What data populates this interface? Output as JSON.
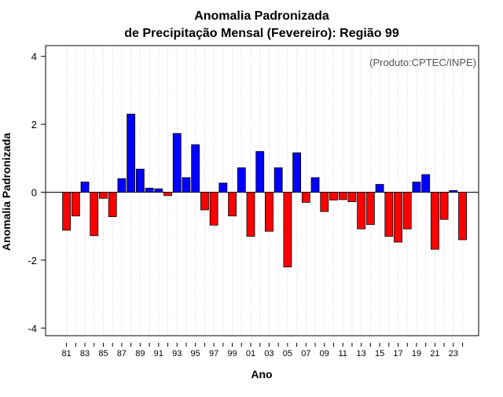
{
  "chart_data": {
    "type": "bar",
    "title": "Anomalia Padronizada",
    "subtitle": "de Precipitação Mensal (Fevereiro): Região 99",
    "annotation": "(Produto:CPTEC/INPE)",
    "xlabel": "Ano",
    "ylabel": "Anomalia Padronizada",
    "ylim": [
      -4.2,
      4.3
    ],
    "yticks": [
      -4,
      -2,
      0,
      2,
      4
    ],
    "grid": "vertical dotted",
    "positive_color": "#0000ff",
    "negative_color": "#ff0000",
    "categories": [
      "81",
      "82",
      "83",
      "84",
      "85",
      "86",
      "87",
      "88",
      "89",
      "90",
      "91",
      "92",
      "93",
      "94",
      "95",
      "96",
      "97",
      "98",
      "99",
      "00",
      "01",
      "02",
      "03",
      "04",
      "05",
      "06",
      "07",
      "08",
      "09",
      "10",
      "11",
      "12",
      "13",
      "14",
      "15",
      "16",
      "17",
      "18",
      "19",
      "20",
      "21",
      "22",
      "23",
      "24"
    ],
    "tick_labels": [
      "81",
      "83",
      "85",
      "87",
      "89",
      "91",
      "93",
      "95",
      "97",
      "99",
      "01",
      "03",
      "05",
      "07",
      "09",
      "11",
      "13",
      "15",
      "17",
      "19",
      "21",
      "23"
    ],
    "values": [
      -1.12,
      -0.7,
      0.3,
      -1.28,
      -0.18,
      -0.72,
      0.4,
      2.3,
      0.68,
      0.12,
      0.1,
      -0.1,
      1.73,
      0.43,
      1.4,
      -0.52,
      -0.97,
      0.27,
      -0.7,
      0.72,
      -1.3,
      1.2,
      -1.15,
      0.72,
      -2.2,
      1.16,
      -0.3,
      0.43,
      -0.57,
      -0.23,
      -0.22,
      -0.28,
      -1.08,
      -0.95,
      0.23,
      -1.3,
      -1.47,
      -1.08,
      0.3,
      0.52,
      -1.68,
      -0.8,
      0.05,
      -1.4
    ]
  }
}
